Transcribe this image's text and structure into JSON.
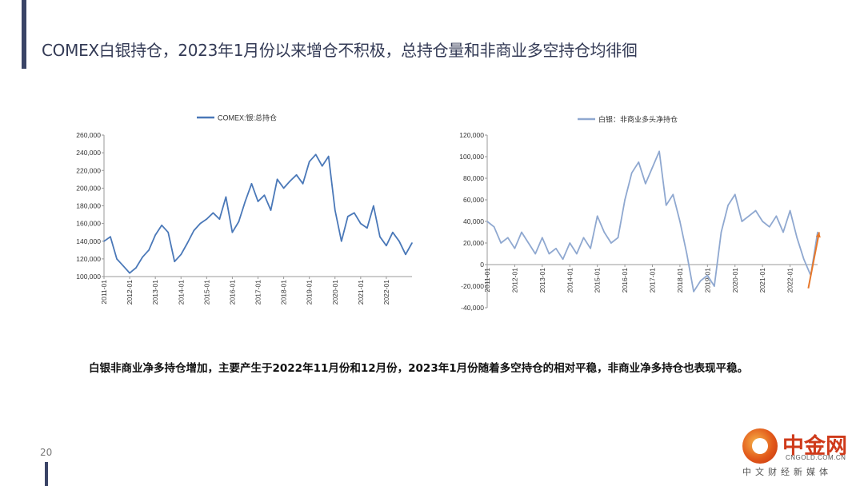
{
  "slide": {
    "title": "COMEX白银持仓，2023年1月份以来增仓不积极，总持仓量和非商业多空持仓均徘徊",
    "note": "白银非商业净多持仓增加，主要产生于2022年11月份和12月份，2023年1月份随着多空持仓的相对平稳，非商业净多持仓也表现平稳。",
    "page_number": "20",
    "accent_color": "#3a4466"
  },
  "logo": {
    "name": "中金网",
    "domain": "CNGOLD.COM.CN",
    "slogan": "中文财经新媒体",
    "color": "#cf3a1a"
  },
  "chart_data": [
    {
      "type": "line",
      "title": "",
      "legend": "COMEX:银:总持仓",
      "legend_position": "top-center",
      "line_color": "#4a78b8",
      "xlabel": "",
      "ylabel": "",
      "x_ticks": [
        "2011-01",
        "2012-01",
        "2013-01",
        "2014-01",
        "2015-01",
        "2016-01",
        "2017-01",
        "2018-01",
        "2019-01",
        "2020-01",
        "2021-01",
        "2022-01"
      ],
      "ylim": [
        100000,
        260000
      ],
      "y_ticks": [
        "100,000",
        "120,000",
        "140,000",
        "160,000",
        "180,000",
        "200,000",
        "220,000",
        "240,000",
        "260,000"
      ],
      "grid": false,
      "series": [
        {
          "name": "COMEX:银:总持仓",
          "x": [
            "2011-01",
            "2011-04",
            "2011-07",
            "2011-10",
            "2012-01",
            "2012-04",
            "2012-07",
            "2012-10",
            "2013-01",
            "2013-04",
            "2013-07",
            "2013-10",
            "2014-01",
            "2014-04",
            "2014-07",
            "2014-10",
            "2015-01",
            "2015-04",
            "2015-07",
            "2015-10",
            "2016-01",
            "2016-04",
            "2016-07",
            "2016-10",
            "2017-01",
            "2017-04",
            "2017-07",
            "2017-10",
            "2018-01",
            "2018-04",
            "2018-07",
            "2018-10",
            "2019-01",
            "2019-04",
            "2019-07",
            "2019-10",
            "2020-01",
            "2020-04",
            "2020-07",
            "2020-10",
            "2021-01",
            "2021-04",
            "2021-07",
            "2021-10",
            "2022-01",
            "2022-04",
            "2022-07",
            "2022-10",
            "2023-01"
          ],
          "values": [
            140000,
            145000,
            120000,
            112000,
            104000,
            110000,
            122000,
            130000,
            147000,
            158000,
            150000,
            117000,
            125000,
            138000,
            152000,
            160000,
            165000,
            172000,
            165000,
            190000,
            150000,
            162000,
            185000,
            205000,
            185000,
            192000,
            175000,
            210000,
            200000,
            208000,
            215000,
            205000,
            230000,
            238000,
            225000,
            236000,
            175000,
            140000,
            168000,
            172000,
            160000,
            155000,
            180000,
            145000,
            135000,
            150000,
            140000,
            125000,
            138000
          ]
        }
      ]
    },
    {
      "type": "line",
      "title": "",
      "legend": "白银：非商业多头净持仓",
      "legend_position": "top-center",
      "line_color": "#8fa8d0",
      "xlabel": "",
      "ylabel": "",
      "x_ticks": [
        "2011-01",
        "2012-01",
        "2013-01",
        "2014-01",
        "2015-01",
        "2016-01",
        "2017-01",
        "2018-01",
        "2019-01",
        "2020-01",
        "2021-01",
        "2022-01"
      ],
      "ylim": [
        -40000,
        120000
      ],
      "y_ticks": [
        "-40,000",
        "-20,000",
        "0",
        "20,000",
        "40,000",
        "60,000",
        "80,000",
        "100,000",
        "120,000"
      ],
      "grid": false,
      "annotation": "orange rising arrow at 2022-11 to 2023-01",
      "annotation_color": "#e8782a",
      "series": [
        {
          "name": "白银：非商业多头净持仓",
          "x": [
            "2011-01",
            "2011-04",
            "2011-07",
            "2011-10",
            "2012-01",
            "2012-04",
            "2012-07",
            "2012-10",
            "2013-01",
            "2013-04",
            "2013-07",
            "2013-10",
            "2014-01",
            "2014-04",
            "2014-07",
            "2014-10",
            "2015-01",
            "2015-04",
            "2015-07",
            "2015-10",
            "2016-01",
            "2016-04",
            "2016-07",
            "2016-10",
            "2017-01",
            "2017-04",
            "2017-07",
            "2017-10",
            "2018-01",
            "2018-04",
            "2018-07",
            "2018-10",
            "2019-01",
            "2019-04",
            "2019-07",
            "2019-10",
            "2020-01",
            "2020-04",
            "2020-07",
            "2020-10",
            "2021-01",
            "2021-04",
            "2021-07",
            "2021-10",
            "2022-01",
            "2022-04",
            "2022-07",
            "2022-10",
            "2023-01"
          ],
          "values": [
            40000,
            35000,
            20000,
            25000,
            15000,
            30000,
            20000,
            10000,
            25000,
            10000,
            15000,
            5000,
            20000,
            10000,
            25000,
            15000,
            45000,
            30000,
            20000,
            25000,
            60000,
            85000,
            95000,
            75000,
            90000,
            105000,
            55000,
            65000,
            40000,
            10000,
            -25000,
            -15000,
            -10000,
            -20000,
            30000,
            55000,
            65000,
            40000,
            45000,
            50000,
            40000,
            35000,
            45000,
            30000,
            50000,
            25000,
            5000,
            -10000,
            30000
          ]
        }
      ]
    }
  ]
}
